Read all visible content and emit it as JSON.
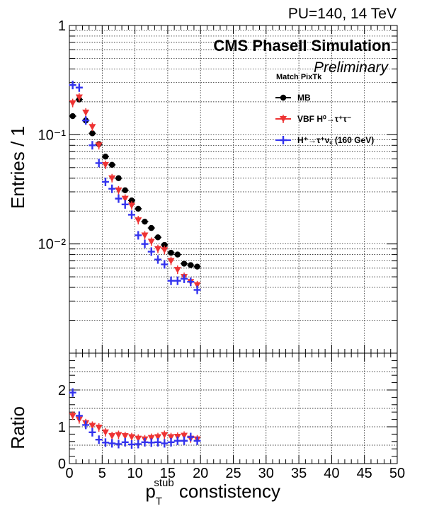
{
  "header": {
    "run_info": "PU=140, 14 TeV",
    "experiment": "CMS PhaseII Simulation",
    "status": "Preliminary"
  },
  "legend": {
    "title": "Match PixTk",
    "entries": [
      {
        "label": "MB",
        "color": "#000000",
        "marker": "circle"
      },
      {
        "label": "VBF H⁰→τ⁺τ⁻",
        "color": "#ee3333",
        "marker": "triangle-down"
      },
      {
        "label": "H⁺→τ⁺ν꜀ (160 GeV)",
        "color": "#3333ee",
        "marker": "cross"
      }
    ]
  },
  "chart_data": [
    {
      "type": "scatter",
      "panel": "main",
      "ylabel": "Entries / 1",
      "y_scale": "log",
      "ylim": [
        0.001,
        1
      ],
      "xlim": [
        0,
        50
      ],
      "y_tick_labels": [
        "10⁻²",
        "10⁻¹",
        "1"
      ],
      "grid": true,
      "legend_position": "top-right",
      "x": [
        0.5,
        1.5,
        2.5,
        3.5,
        4.5,
        5.5,
        6.5,
        7.5,
        8.5,
        9.5,
        10.5,
        11.5,
        12.5,
        13.5,
        14.5,
        15.5,
        16.5,
        17.5,
        18.5,
        19.5
      ],
      "series": [
        {
          "name": "MB",
          "color": "#000000",
          "values": [
            0.148,
            0.21,
            0.135,
            0.103,
            0.082,
            0.063,
            0.053,
            0.04,
            0.031,
            0.025,
            0.021,
            0.016,
            0.014,
            0.0115,
            0.0098,
            0.0083,
            0.008,
            0.0066,
            0.0064,
            0.0062
          ]
        },
        {
          "name": "VBF H⁰→τ⁺τ⁻",
          "color": "#ee3333",
          "values": [
            0.195,
            0.22,
            0.16,
            0.118,
            0.08,
            0.053,
            0.04,
            0.031,
            0.026,
            0.0225,
            0.0165,
            0.012,
            0.0105,
            0.009,
            0.0088,
            0.007,
            0.0058,
            0.005,
            0.0045,
            0.0042
          ]
        },
        {
          "name": "H⁺→τ⁺ν꜀ (160 GeV)",
          "color": "#3333ee",
          "values": [
            0.285,
            0.27,
            0.135,
            0.08,
            0.055,
            0.037,
            0.032,
            0.026,
            0.023,
            0.0185,
            0.012,
            0.01,
            0.0085,
            0.0072,
            0.0065,
            0.0046,
            0.0046,
            0.0048,
            0.0045,
            0.0038
          ]
        }
      ]
    },
    {
      "type": "scatter",
      "panel": "ratio",
      "ylabel": "Ratio",
      "xlabel": "p_T^stub constistency",
      "xlabel_parts": [
        "p",
        "T",
        "stub",
        " constistency"
      ],
      "ylim": [
        0,
        3
      ],
      "xlim": [
        0,
        50
      ],
      "y_tick_labels": [
        "0",
        "1",
        "2"
      ],
      "x_tick_labels": [
        "0",
        "5",
        "10",
        "15",
        "20",
        "25",
        "30",
        "35",
        "40",
        "45",
        "50"
      ],
      "grid": true,
      "x": [
        0.5,
        1.5,
        2.5,
        3.5,
        4.5,
        5.5,
        6.5,
        7.5,
        8.5,
        9.5,
        10.5,
        11.5,
        12.5,
        13.5,
        14.5,
        15.5,
        16.5,
        17.5,
        18.5,
        19.5
      ],
      "series": [
        {
          "name": "VBF H⁰→τ⁺τ⁻",
          "color": "#ee3333",
          "values": [
            1.3,
            1.2,
            1.1,
            1.03,
            0.98,
            0.85,
            0.75,
            0.78,
            0.75,
            0.72,
            0.68,
            0.66,
            0.7,
            0.72,
            0.78,
            0.72,
            0.73,
            0.76,
            0.68,
            0.66
          ]
        },
        {
          "name": "H⁺→τ⁺ν꜀ (160 GeV)",
          "color": "#3333ee",
          "values": [
            1.93,
            1.3,
            1.05,
            0.85,
            0.65,
            0.57,
            0.55,
            0.53,
            0.58,
            0.52,
            0.53,
            0.58,
            0.57,
            0.58,
            0.55,
            0.58,
            0.62,
            0.62,
            0.72,
            0.62
          ]
        }
      ]
    }
  ]
}
